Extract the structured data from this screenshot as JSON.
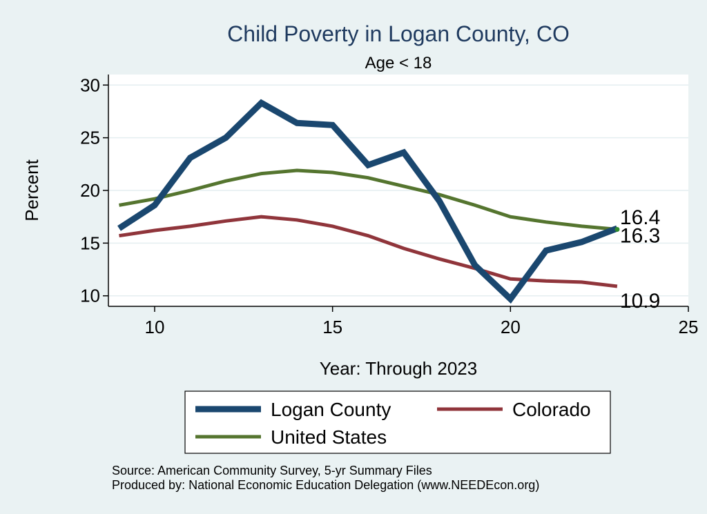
{
  "chart_data": {
    "type": "line",
    "title": "Child Poverty in Logan County, CO",
    "subtitle": "Age < 18",
    "xlabel": "Year: Through 2023",
    "ylabel": "Percent",
    "xlim": [
      8.7,
      25
    ],
    "ylim": [
      9,
      31
    ],
    "xticks": [
      10,
      15,
      20,
      25
    ],
    "yticks": [
      10,
      15,
      20,
      25,
      30
    ],
    "x": [
      9,
      10,
      11,
      12,
      13,
      14,
      15,
      16,
      17,
      18,
      19,
      20,
      21,
      22,
      23
    ],
    "series": [
      {
        "name": "Logan County",
        "color": "#1a476f",
        "values": [
          16.4,
          18.6,
          23.1,
          25.0,
          28.3,
          26.4,
          26.2,
          22.4,
          23.6,
          19.0,
          12.9,
          9.7,
          14.3,
          15.1,
          16.4
        ],
        "end_label": "16.4"
      },
      {
        "name": "Colorado",
        "color": "#90353b",
        "values": [
          15.7,
          16.2,
          16.6,
          17.1,
          17.5,
          17.2,
          16.6,
          15.7,
          14.5,
          13.5,
          12.6,
          11.6,
          11.4,
          11.3,
          10.9
        ],
        "end_label": "10.9"
      },
      {
        "name": "United States",
        "color": "#55752f",
        "values": [
          18.6,
          19.2,
          20.0,
          20.9,
          21.6,
          21.9,
          21.7,
          21.2,
          20.4,
          19.6,
          18.6,
          17.5,
          17.0,
          16.6,
          16.3
        ],
        "end_label": "16.3"
      }
    ],
    "legend": [
      "Logan County",
      "Colorado",
      "United States"
    ],
    "legend_position": "bottom",
    "grid": true
  },
  "notes": {
    "source": "Source: American Community Survey, 5-yr Summary Files",
    "produced": "Produced by: National Economic Education Delegation (www.NEEDEcon.org)"
  }
}
